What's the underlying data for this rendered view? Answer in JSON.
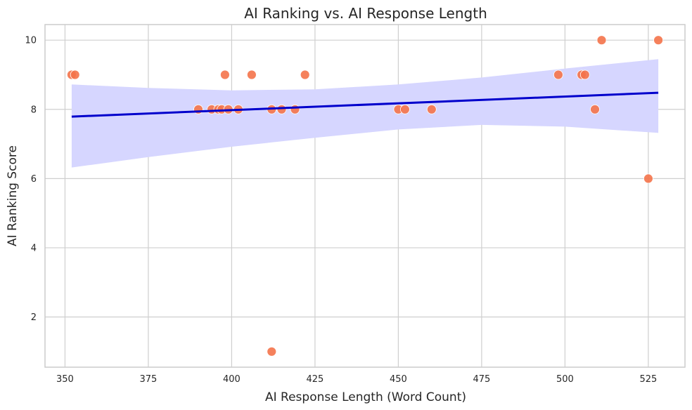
{
  "chart_data": {
    "type": "scatter",
    "title": "AI Ranking vs. AI Response Length",
    "xlabel": "AI Response Length (Word Count)",
    "ylabel": "AI Ranking Score",
    "xlim": [
      344,
      536
    ],
    "ylim": [
      0.55,
      10.45
    ],
    "xticks": [
      "350",
      "375",
      "400",
      "425",
      "450",
      "475",
      "500",
      "525"
    ],
    "yticks": [
      "2",
      "4",
      "6",
      "8",
      "10"
    ],
    "grid": true,
    "legend": "none",
    "colors": {
      "points": "#f4734a",
      "fit_line": "#0000cc",
      "ci_band": "#d6d6ff"
    },
    "points": [
      {
        "x": 352,
        "y": 9
      },
      {
        "x": 353,
        "y": 9
      },
      {
        "x": 390,
        "y": 8
      },
      {
        "x": 394,
        "y": 8
      },
      {
        "x": 396,
        "y": 8
      },
      {
        "x": 397,
        "y": 8
      },
      {
        "x": 398,
        "y": 9
      },
      {
        "x": 399,
        "y": 8
      },
      {
        "x": 402,
        "y": 8
      },
      {
        "x": 406,
        "y": 9
      },
      {
        "x": 412,
        "y": 8
      },
      {
        "x": 412,
        "y": 1
      },
      {
        "x": 415,
        "y": 8
      },
      {
        "x": 419,
        "y": 8
      },
      {
        "x": 422,
        "y": 9
      },
      {
        "x": 450,
        "y": 8
      },
      {
        "x": 452,
        "y": 8
      },
      {
        "x": 460,
        "y": 8
      },
      {
        "x": 498,
        "y": 9
      },
      {
        "x": 505,
        "y": 9
      },
      {
        "x": 506,
        "y": 9
      },
      {
        "x": 509,
        "y": 8
      },
      {
        "x": 511,
        "y": 10
      },
      {
        "x": 525,
        "y": 6
      },
      {
        "x": 528,
        "y": 10
      }
    ],
    "regression": {
      "x": [
        352,
        528
      ],
      "y": [
        7.79,
        8.48
      ]
    },
    "confidence_band": {
      "x": [
        352,
        375,
        400,
        425,
        450,
        475,
        500,
        528
      ],
      "lower": [
        6.32,
        6.62,
        6.92,
        7.18,
        7.42,
        7.55,
        7.5,
        7.32
      ],
      "upper": [
        8.72,
        8.62,
        8.55,
        8.58,
        8.72,
        8.92,
        9.18,
        9.45
      ]
    }
  }
}
